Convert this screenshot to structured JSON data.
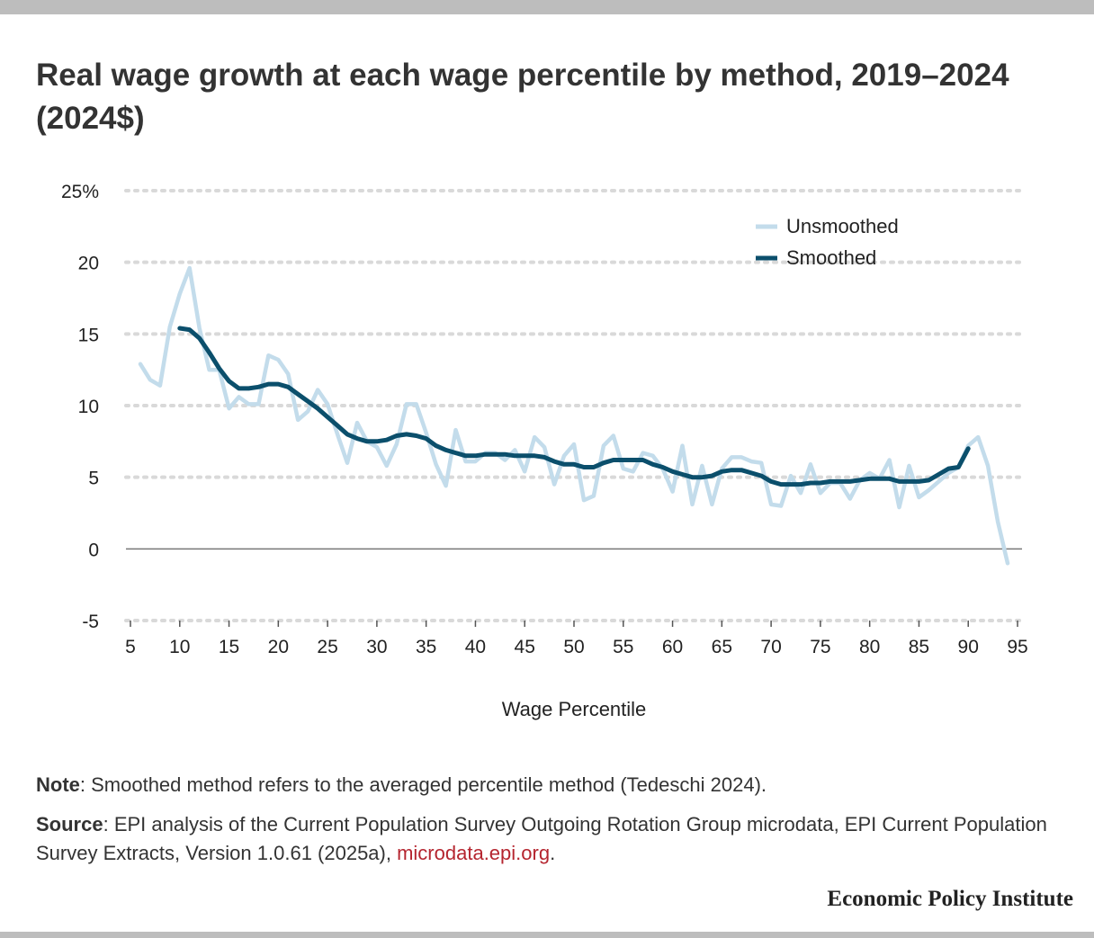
{
  "title": "Real wage growth at each wage percentile by method, 2019–2024 (2024$)",
  "notes": {
    "note_label": "Note",
    "note_text": ": Smoothed method refers to the averaged percentile method (Tedeschi 2024).",
    "source_label": "Source",
    "source_text": ": EPI analysis of the Current Population Survey Outgoing Rotation Group microdata, EPI Current Population Survey Extracts, Version 1.0.61 (2025a), ",
    "source_link": "microdata.epi.org",
    "source_end": "."
  },
  "brand": "Economic Policy Institute",
  "colors": {
    "unsmoothed": "#c3dceb",
    "smoothed": "#0b4f6c",
    "grid": "#d9d9d9",
    "zero": "#777777",
    "link": "#b5252f"
  },
  "chart_data": {
    "type": "line",
    "xlabel": "Wage Percentile",
    "ylabel": "",
    "xlim": [
      5,
      95
    ],
    "ylim": [
      -5,
      25
    ],
    "x_ticks": [
      5,
      10,
      15,
      20,
      25,
      30,
      35,
      40,
      45,
      50,
      55,
      60,
      65,
      70,
      75,
      80,
      85,
      90,
      95
    ],
    "y_ticks": [
      {
        "value": 25,
        "label": "25%"
      },
      {
        "value": 20,
        "label": "20"
      },
      {
        "value": 15,
        "label": "15"
      },
      {
        "value": 10,
        "label": "10"
      },
      {
        "value": 5,
        "label": "5"
      },
      {
        "value": 0,
        "label": "0"
      },
      {
        "value": -5,
        "label": "-5"
      }
    ],
    "grid": "horizontal-dotted",
    "legend_position": "top-right",
    "series": [
      {
        "name": "Unsmoothed",
        "x": [
          6,
          7,
          8,
          9,
          10,
          11,
          12,
          13,
          14,
          15,
          16,
          17,
          18,
          19,
          20,
          21,
          22,
          23,
          24,
          25,
          26,
          27,
          28,
          29,
          30,
          31,
          32,
          33,
          34,
          35,
          36,
          37,
          38,
          39,
          40,
          41,
          42,
          43,
          44,
          45,
          46,
          47,
          48,
          49,
          50,
          51,
          52,
          53,
          54,
          55,
          56,
          57,
          58,
          59,
          60,
          61,
          62,
          63,
          64,
          65,
          66,
          67,
          68,
          69,
          70,
          71,
          72,
          73,
          74,
          75,
          76,
          77,
          78,
          79,
          80,
          81,
          82,
          83,
          84,
          85,
          86,
          87,
          88,
          89,
          90,
          91,
          92,
          93,
          94
        ],
        "y": [
          12.9,
          11.8,
          11.4,
          15.5,
          17.8,
          19.6,
          15.4,
          12.5,
          12.5,
          9.8,
          10.6,
          10.1,
          10.1,
          13.5,
          13.2,
          12.2,
          9.0,
          9.6,
          11.1,
          10.1,
          8.0,
          6.0,
          8.8,
          7.5,
          7.1,
          5.8,
          7.3,
          10.1,
          10.1,
          8.1,
          5.9,
          4.4,
          8.3,
          6.1,
          6.1,
          6.7,
          6.7,
          6.2,
          6.9,
          5.4,
          7.8,
          7.1,
          4.5,
          6.5,
          7.3,
          3.4,
          3.7,
          7.2,
          7.9,
          5.6,
          5.4,
          6.7,
          6.5,
          5.6,
          4.0,
          7.2,
          3.1,
          5.8,
          3.1,
          5.6,
          6.4,
          6.4,
          6.1,
          6.0,
          3.1,
          3.0,
          5.1,
          3.9,
          5.9,
          3.9,
          4.6,
          4.6,
          3.5,
          4.8,
          5.3,
          4.9,
          6.2,
          2.9,
          5.8,
          3.6,
          4.1,
          4.7,
          5.3,
          5.7,
          7.2,
          7.8,
          5.8,
          1.9,
          -1.0
        ]
      },
      {
        "name": "Smoothed",
        "x": [
          10,
          11,
          12,
          13,
          14,
          15,
          16,
          17,
          18,
          19,
          20,
          21,
          22,
          23,
          24,
          25,
          26,
          27,
          28,
          29,
          30,
          31,
          32,
          33,
          34,
          35,
          36,
          37,
          38,
          39,
          40,
          41,
          42,
          43,
          44,
          45,
          46,
          47,
          48,
          49,
          50,
          51,
          52,
          53,
          54,
          55,
          56,
          57,
          58,
          59,
          60,
          61,
          62,
          63,
          64,
          65,
          66,
          67,
          68,
          69,
          70,
          71,
          72,
          73,
          74,
          75,
          76,
          77,
          78,
          79,
          80,
          81,
          82,
          83,
          84,
          85,
          86,
          87,
          88,
          89,
          90
        ],
        "y": [
          15.4,
          15.3,
          14.7,
          13.7,
          12.6,
          11.7,
          11.2,
          11.2,
          11.3,
          11.5,
          11.5,
          11.3,
          10.8,
          10.3,
          9.8,
          9.2,
          8.6,
          8.0,
          7.7,
          7.5,
          7.5,
          7.6,
          7.9,
          8.0,
          7.9,
          7.7,
          7.2,
          6.9,
          6.7,
          6.5,
          6.5,
          6.6,
          6.6,
          6.6,
          6.5,
          6.5,
          6.5,
          6.4,
          6.1,
          5.9,
          5.9,
          5.7,
          5.7,
          6.0,
          6.2,
          6.2,
          6.2,
          6.2,
          5.9,
          5.7,
          5.4,
          5.2,
          5.0,
          5.0,
          5.1,
          5.4,
          5.5,
          5.5,
          5.3,
          5.1,
          4.7,
          4.5,
          4.5,
          4.5,
          4.6,
          4.6,
          4.7,
          4.7,
          4.7,
          4.8,
          4.9,
          4.9,
          4.9,
          4.7,
          4.7,
          4.7,
          4.8,
          5.2,
          5.6,
          5.7,
          7.0
        ]
      }
    ]
  }
}
